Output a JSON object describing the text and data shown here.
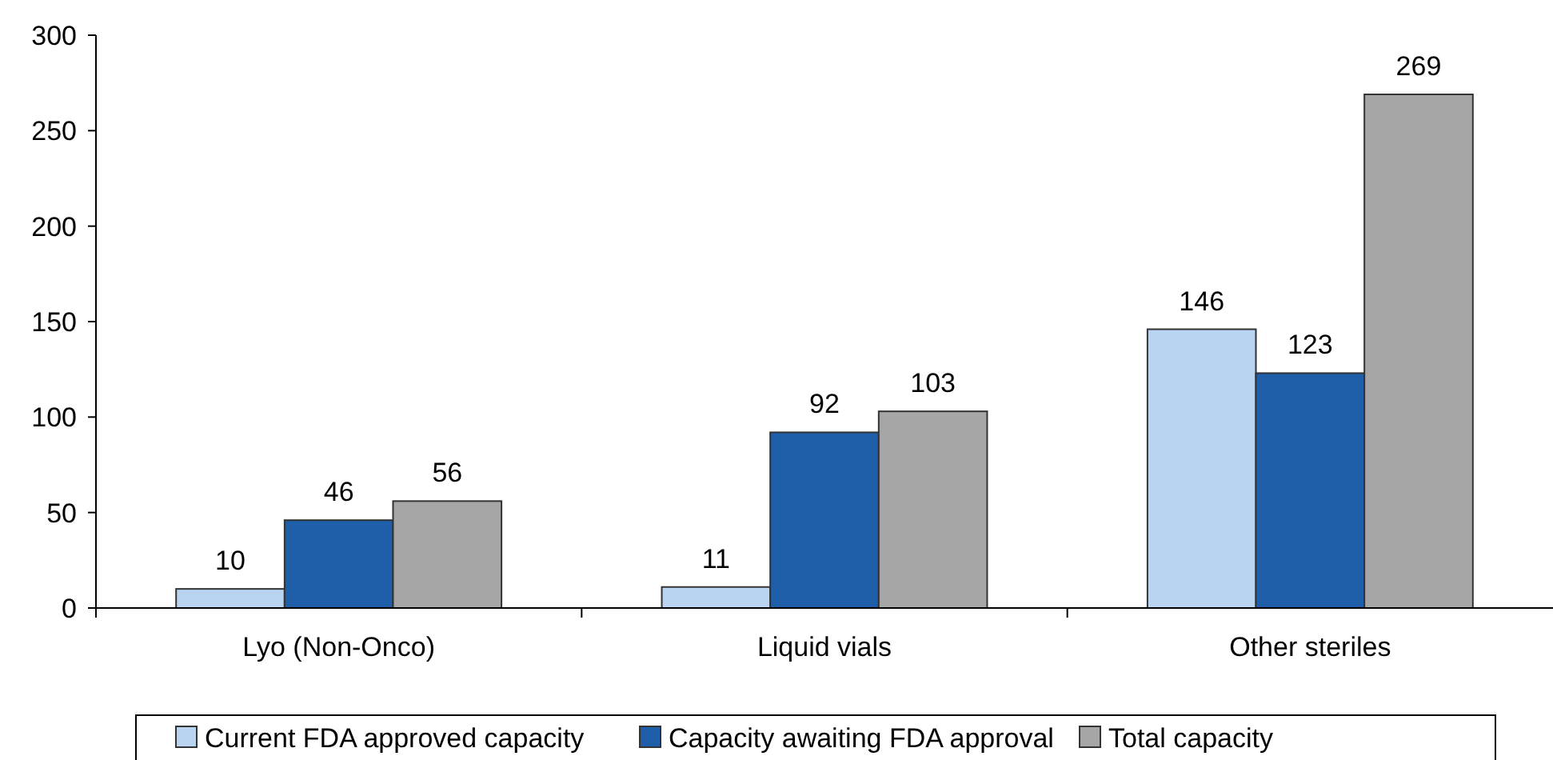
{
  "chart_data": {
    "type": "bar",
    "categories": [
      "Lyo (Non-Onco)",
      "Liquid vials",
      "Other steriles"
    ],
    "series": [
      {
        "name": "Current FDA approved capacity",
        "color": "#b9d4f0",
        "values": [
          10,
          11,
          146
        ]
      },
      {
        "name": "Capacity awaiting FDA approval",
        "color": "#1f5ea8",
        "values": [
          46,
          92,
          123
        ]
      },
      {
        "name": "Total capacity",
        "color": "#a6a6a6",
        "values": [
          56,
          103,
          269
        ]
      }
    ],
    "ylim": [
      0,
      300
    ],
    "yticks": [
      0,
      50,
      100,
      150,
      200,
      250,
      300
    ],
    "grid": false,
    "legend": "bottom",
    "data_labels": true
  }
}
